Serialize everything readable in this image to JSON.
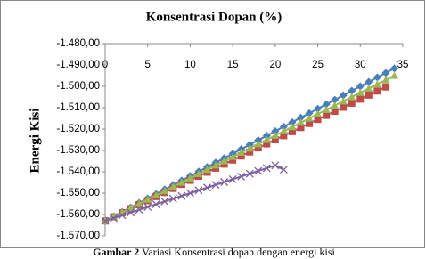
{
  "chart_data": {
    "type": "line",
    "title": "Konsentrasi Dopan (%)",
    "ylabel": "Energi Kisi",
    "xlim": [
      0,
      35
    ],
    "xticks": [
      0,
      5,
      10,
      15,
      20,
      25,
      30,
      35
    ],
    "ylim": [
      -1570,
      -1480
    ],
    "yticks": [
      {
        "value": -1480,
        "label": "-1.480,00"
      },
      {
        "value": -1490,
        "label": "-1.490,00"
      },
      {
        "value": -1500,
        "label": "-1.500,00"
      },
      {
        "value": -1510,
        "label": "-1.510,00"
      },
      {
        "value": -1520,
        "label": "-1.520,00"
      },
      {
        "value": -1530,
        "label": "-1.530,00"
      },
      {
        "value": -1540,
        "label": "-1.540,00"
      },
      {
        "value": -1550,
        "label": "-1.550,00"
      },
      {
        "value": -1560,
        "label": "-1.560,00"
      },
      {
        "value": -1570,
        "label": "-1.570,00"
      }
    ],
    "grid": false,
    "series": [
      {
        "color": "#4a7ebb",
        "marker": "diamond",
        "x": [
          0,
          1,
          2,
          3,
          4,
          5,
          6,
          7,
          8,
          9,
          10,
          11,
          12,
          13,
          14,
          15,
          16,
          17,
          18,
          19,
          20,
          21,
          22,
          23,
          24,
          25,
          26,
          27,
          28,
          29,
          30,
          31,
          32,
          33,
          34
        ],
        "values": [
          -1563,
          -1560.9,
          -1558.8,
          -1556.7,
          -1554.6,
          -1552.5,
          -1550.4,
          -1548.3,
          -1546.2,
          -1544.1,
          -1542,
          -1539.9,
          -1537.8,
          -1535.7,
          -1533.6,
          -1531.5,
          -1529.4,
          -1527.3,
          -1525.2,
          -1523.1,
          -1521,
          -1518.9,
          -1516.8,
          -1514.7,
          -1512.6,
          -1510.5,
          -1508.4,
          -1506.3,
          -1504.2,
          -1502.1,
          -1500,
          -1497.9,
          -1495.8,
          -1493.7,
          -1491.6
        ]
      },
      {
        "color": "#be4b48",
        "marker": "square",
        "x": [
          0,
          1,
          2,
          3,
          4,
          5,
          6,
          7,
          8,
          9,
          10,
          11,
          12,
          13,
          14,
          15,
          16,
          17,
          18,
          19,
          20,
          21,
          22,
          23,
          24,
          25,
          26,
          27,
          28,
          29,
          30,
          31,
          32,
          33
        ],
        "values": [
          -1563,
          -1561.1,
          -1559.2,
          -1557.3,
          -1555.4,
          -1553.5,
          -1551.6,
          -1549.7,
          -1547.8,
          -1545.9,
          -1544,
          -1542.1,
          -1540.2,
          -1538.3,
          -1536.4,
          -1534.5,
          -1532.6,
          -1530.7,
          -1528.8,
          -1526.9,
          -1525,
          -1523.1,
          -1521.2,
          -1519.3,
          -1517.4,
          -1515.5,
          -1513.6,
          -1511.7,
          -1509.8,
          -1507.9,
          -1506,
          -1504.1,
          -1502.2,
          -1500.3
        ]
      },
      {
        "color": "#98b954",
        "marker": "triangle",
        "x": [
          0,
          1,
          2,
          3,
          4,
          5,
          6,
          7,
          8,
          9,
          10,
          11,
          12,
          13,
          14,
          15,
          16,
          17,
          18,
          19,
          20,
          21,
          22,
          23,
          24,
          25,
          26,
          27,
          28,
          29,
          30,
          31,
          32,
          33,
          34
        ],
        "values": [
          -1563,
          -1561,
          -1559,
          -1557,
          -1555,
          -1553,
          -1551,
          -1549,
          -1547,
          -1545,
          -1543,
          -1541,
          -1539,
          -1537,
          -1535,
          -1533,
          -1531,
          -1529,
          -1527,
          -1525,
          -1523,
          -1521,
          -1519,
          -1517,
          -1515,
          -1513,
          -1511,
          -1509,
          -1507,
          -1505,
          -1503,
          -1501,
          -1499,
          -1497,
          -1495
        ]
      },
      {
        "color": "#7d60a0",
        "marker": "x",
        "x": [
          0,
          1,
          2,
          3,
          4,
          5,
          6,
          7,
          8,
          9,
          10,
          11,
          12,
          13,
          14,
          15,
          16,
          17,
          18,
          19,
          20,
          21
        ],
        "values": [
          -1563,
          -1561.7,
          -1560.4,
          -1559.1,
          -1557.8,
          -1556.5,
          -1555.2,
          -1553.9,
          -1552.6,
          -1551.3,
          -1550,
          -1548.7,
          -1547.4,
          -1546.1,
          -1544.8,
          -1543.5,
          -1542.2,
          -1540.9,
          -1539.6,
          -1538.3,
          -1537,
          -1539
        ]
      }
    ]
  },
  "caption": {
    "label": "Gambar 2",
    "text": "Variasi Konsentrasi dopan dengan energi kisi"
  }
}
